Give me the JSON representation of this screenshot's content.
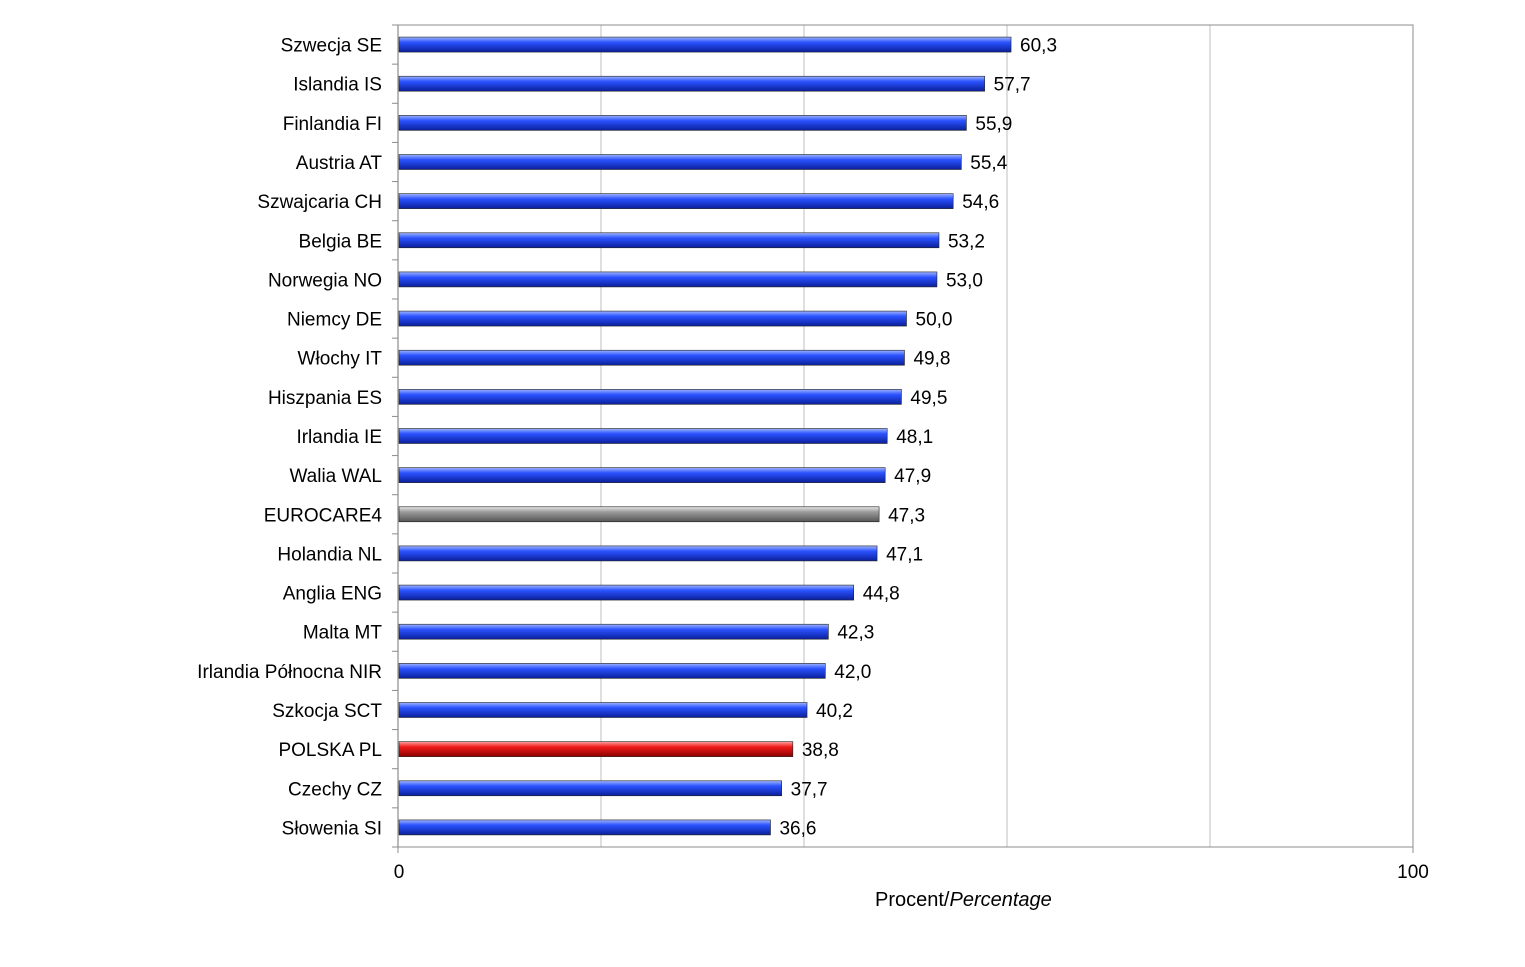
{
  "chart_data": {
    "type": "bar",
    "orientation": "horizontal",
    "categories": [
      "Szwecja SE",
      "Islandia IS",
      "Finlandia FI",
      "Austria AT",
      "Szwajcaria CH",
      "Belgia BE",
      "Norwegia NO",
      "Niemcy DE",
      "Włochy IT",
      "Hiszpania ES",
      "Irlandia IE",
      "Walia WAL",
      "EUROCARE4",
      "Holandia NL",
      "Anglia ENG",
      "Malta MT",
      "Irlandia Północna NIR",
      "Szkocja SCT",
      "POLSKA PL",
      "Czechy CZ",
      "Słowenia SI"
    ],
    "values": [
      60.3,
      57.7,
      55.9,
      55.4,
      54.6,
      53.2,
      53.0,
      50.0,
      49.8,
      49.5,
      48.1,
      47.9,
      47.3,
      47.1,
      44.8,
      42.3,
      42.0,
      40.2,
      38.8,
      37.7,
      36.6
    ],
    "value_labels": [
      "60,3",
      "57,7",
      "55,9",
      "55,4",
      "54,6",
      "53,2",
      "53,0",
      "50,0",
      "49,8",
      "49,5",
      "48,1",
      "47,9",
      "47,3",
      "47,1",
      "44,8",
      "42,3",
      "42,0",
      "40,2",
      "38,8",
      "37,7",
      "36,6"
    ],
    "xlabel": "Procent/",
    "xlabel_italic": "Percentage",
    "xlim": [
      0,
      100
    ],
    "x_ticks": [
      "0",
      "100"
    ],
    "grid": "vertical",
    "colors": {
      "default": "#1a3fe0",
      "highlight_eurocare": "#8c8c8c",
      "highlight_poland": "#e01010"
    },
    "highlight": {
      "EUROCARE4": "highlight_eurocare",
      "POLSKA PL": "highlight_poland"
    }
  }
}
